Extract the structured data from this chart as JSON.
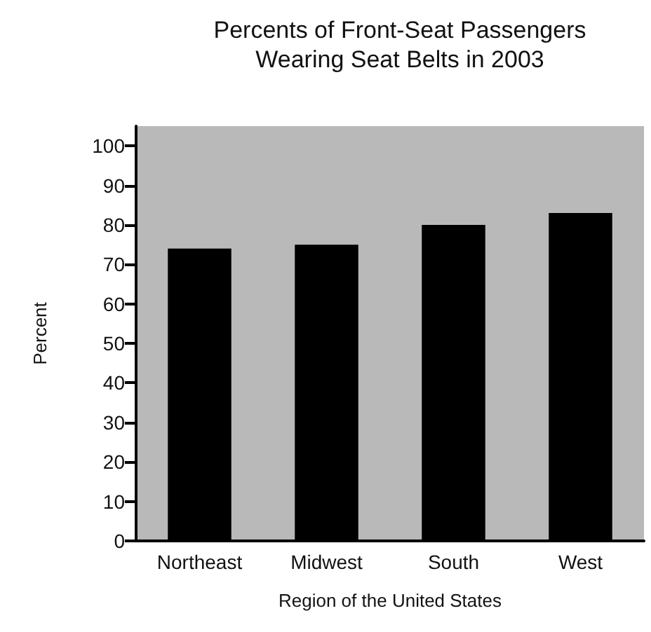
{
  "chart_data": {
    "type": "bar",
    "title": "Percents of Front-Seat Passengers\nWearing Seat Belts in 2003",
    "xlabel": "Region of the United States",
    "ylabel": "Percent",
    "categories": [
      "Northeast",
      "Midwest",
      "South",
      "West"
    ],
    "values": [
      74,
      75,
      80,
      83
    ],
    "color": "#000000",
    "ylim": [
      0,
      105
    ],
    "yticks": [
      0,
      10,
      20,
      30,
      40,
      50,
      60,
      70,
      80,
      90,
      100
    ],
    "grid": false
  }
}
